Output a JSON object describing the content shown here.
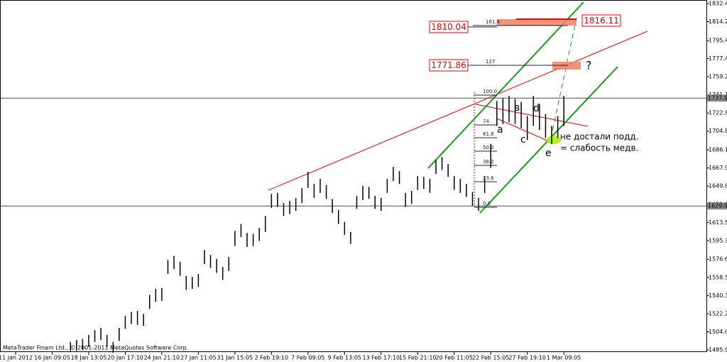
{
  "chart_data": {
    "type": "ohlc",
    "categories": [
      "11 Jan 2012",
      null,
      null,
      null,
      null,
      null,
      "16 Jan 09:05",
      null,
      null,
      null,
      null,
      null,
      "18 Jan 13:05",
      null,
      null,
      null,
      null,
      null,
      "20 Jan 17:10",
      null,
      null,
      null,
      null,
      null,
      "24 Jan 21:10",
      null,
      null,
      null,
      null,
      null,
      "27 Jan 11:05",
      null,
      null,
      null,
      null,
      null,
      "31 Jan 15:05",
      null,
      null,
      null,
      null,
      null,
      "2 Feb 19:10",
      null,
      null,
      null,
      null,
      null,
      "7 Feb 09:05",
      null,
      null,
      null,
      null,
      null,
      "9 Feb 13:05",
      null,
      null,
      null,
      null,
      null,
      "13 Feb 17:10",
      null,
      null,
      null,
      null,
      null,
      "15 Feb 21:10",
      null,
      null,
      null,
      null,
      null,
      "20 Feb 11:05",
      null,
      null,
      null,
      null,
      null,
      "22 Feb 15:05",
      null,
      null,
      null,
      null,
      null,
      "27 Feb 19:10",
      null,
      null,
      null,
      null,
      null,
      "1 Mar 09:05",
      null,
      null,
      null,
      null,
      null,
      null,
      null,
      null,
      null,
      null,
      null,
      null,
      null,
      null,
      null,
      null,
      null,
      null,
      null,
      null,
      null,
      null,
      null
    ],
    "high": [
      null,
      null,
      null,
      null,
      null,
      null,
      null,
      null,
      null,
      1494,
      1496,
      1497,
      1501,
      1506,
      1508,
      1501,
      1494,
      1508,
      1520,
      1524,
      1525,
      1522,
      1541,
      1547,
      1548,
      1576,
      1580,
      1574,
      1560,
      1559,
      1562,
      1586,
      1581,
      1577,
      1569,
      1579,
      1605,
      1612,
      1603,
      1602,
      1608,
      1620,
      1642,
      1643,
      1633,
      1635,
      1638,
      1648,
      1664,
      1652,
      1657,
      1651,
      1637,
      1626,
      1614,
      1604,
      1640,
      1650,
      1649,
      1640,
      1638,
      1657,
      1669,
      1665,
      1643,
      1645,
      1660,
      1659,
      1657,
      1676,
      1679,
      1672,
      1660,
      1657,
      1652,
      1644,
      1638,
      1660,
      1692,
      1735,
      1738,
      1740,
      1737,
      1734,
      1720,
      1740,
      1732,
      1722,
      1710,
      1720,
      1740,
      null,
      null,
      null,
      null,
      null,
      null,
      null,
      null,
      null,
      null,
      null,
      null,
      null,
      null,
      null,
      null,
      null,
      null,
      null,
      null,
      null,
      null,
      null
    ],
    "low": [
      null,
      null,
      null,
      null,
      null,
      null,
      null,
      null,
      null,
      1484,
      1485,
      1486,
      1489,
      1494,
      1496,
      1489,
      1483,
      1495,
      1507,
      1512,
      1511,
      1510,
      1527,
      1534,
      1535,
      1562,
      1567,
      1560,
      1546,
      1547,
      1549,
      1572,
      1568,
      1563,
      1556,
      1565,
      1590,
      1599,
      1589,
      1590,
      1595,
      1604,
      1628,
      1629,
      1620,
      1622,
      1625,
      1633,
      1648,
      1638,
      1643,
      1637,
      1623,
      1612,
      1601,
      1592,
      1627,
      1636,
      1637,
      1627,
      1625,
      1643,
      1655,
      1652,
      1629,
      1632,
      1646,
      1647,
      1643,
      1662,
      1666,
      1659,
      1646,
      1643,
      1639,
      1630,
      1625,
      1643,
      1668,
      1710,
      1712,
      1714,
      1712,
      1708,
      1696,
      1710,
      1706,
      1698,
      1692,
      1698,
      1710,
      null,
      null,
      null,
      null,
      null,
      null,
      null,
      null,
      null,
      null,
      null,
      null,
      null,
      null,
      null,
      null,
      null,
      null,
      null,
      null,
      null,
      null,
      null
    ],
    "color": "#000000",
    "ylim": [
      1481,
      1836
    ],
    "yticks": [
      1832.44,
      1814.29,
      1795.44,
      1777.44,
      1759.29,
      1741.14,
      1722.99,
      1704.84,
      1686.14,
      1667.99,
      1649.84,
      1631.69,
      1613.54,
      1595.39,
      1576.69,
      1558.54,
      1540.39,
      1522.24,
      1504.09,
      1485.94
    ],
    "hlines": [
      {
        "value": 1737.9,
        "label": "1737.90"
      },
      {
        "value": 1629.98,
        "label": "1629.98"
      }
    ],
    "annotations": {
      "price_boxes": [
        "1810.04",
        "1816.11",
        "1771.86"
      ],
      "question": "?",
      "waves": [
        "a",
        "в",
        "c",
        "d",
        "e"
      ],
      "note": [
        "не достали подд.",
        "= слабость медв."
      ],
      "fib": [
        "161.8",
        "127",
        "100.0",
        "74",
        "61.8",
        "50.0",
        "38.2",
        "23.6",
        "0.0"
      ],
      "copyright": "MetaTrader Finam Ltd., © 2001-2011 MetaQuotes Software Corp."
    }
  }
}
